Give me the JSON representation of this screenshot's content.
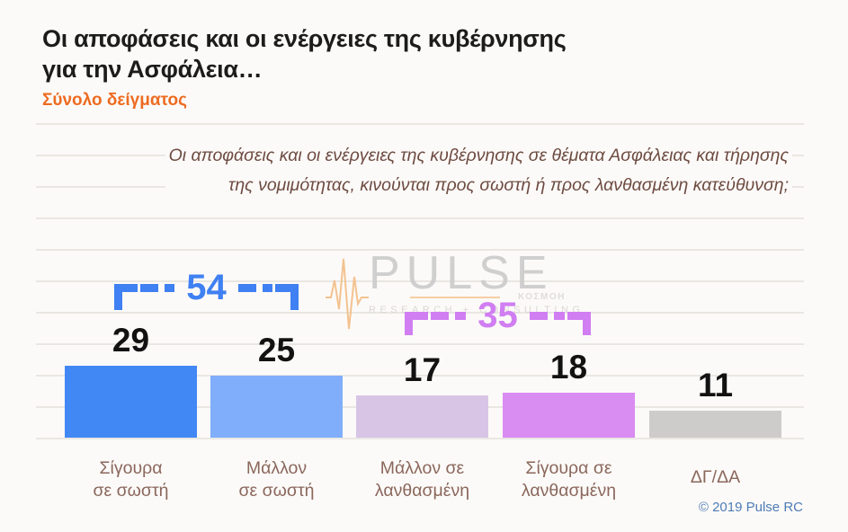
{
  "page": {
    "background": "#fcfaf8"
  },
  "header": {
    "title_line1": "Οι αποφάσεις και οι ενέργειες της κυβέρνησης",
    "title_line2": "για την Ασφάλεια…",
    "sample_label": "Σύνολο δείγματος",
    "title_color": "#1c1c1c",
    "accent_color": "#ed6b21"
  },
  "question": {
    "line1": "Οι αποφάσεις και οι ενέργειες της κυβέρνησης σε θέματα Ασφάλειας και τήρησης",
    "line2": "της νομιμότητας, κινούνται προς σωστή ή προς λανθασμένη κατεύθυνση;",
    "color": "#6d4b41"
  },
  "watermark": {
    "brand": "PULSE",
    "tagline": "RESEARCH + CONSULTING",
    "submark": "ΚΟΣΜΟΗ"
  },
  "chart_data": {
    "type": "bar",
    "title": "Οι αποφάσεις και οι ενέργειες της κυβέρνησης για την Ασφάλεια… (Σύνολο δείγματος)",
    "categories": [
      "Σίγουρα σε σωστή",
      "Μάλλον σε σωστή",
      "Μάλλον σε λανθασμένη",
      "Σίγουρα σε λανθασμένη",
      "ΔΓ/ΔΑ"
    ],
    "categories_lines": [
      [
        "Σίγουρα",
        "σε σωστή"
      ],
      [
        "Μάλλον",
        "σε σωστή"
      ],
      [
        "Μάλλον σε",
        "λανθασμένη"
      ],
      [
        "Σίγουρα σε",
        "λανθασμένη"
      ],
      [
        "ΔΓ/ΔΑ"
      ]
    ],
    "values": [
      29,
      25,
      17,
      18,
      11
    ],
    "bar_colors": [
      "#4288f5",
      "#80aefa",
      "#d8c5e5",
      "#d98cf1",
      "#cecccb"
    ],
    "value_label_color": "#121212",
    "category_label_color": "#8a675c",
    "groups": [
      {
        "label": "54",
        "spans": [
          "Σίγουρα σε σωστή",
          "Μάλλον σε σωστή"
        ],
        "color": "#3f80f2"
      },
      {
        "label": "35",
        "spans": [
          "Μάλλον σε λανθασμένη",
          "Σίγουρα σε λανθασμένη"
        ],
        "color": "#d07ef2"
      }
    ],
    "grid": true,
    "gridline_color": "#eae7e3",
    "xlabel": "",
    "ylabel": "",
    "legend": false
  },
  "footer": {
    "copyright": "© 2019 Pulse RC",
    "color": "#4d7cb6"
  }
}
